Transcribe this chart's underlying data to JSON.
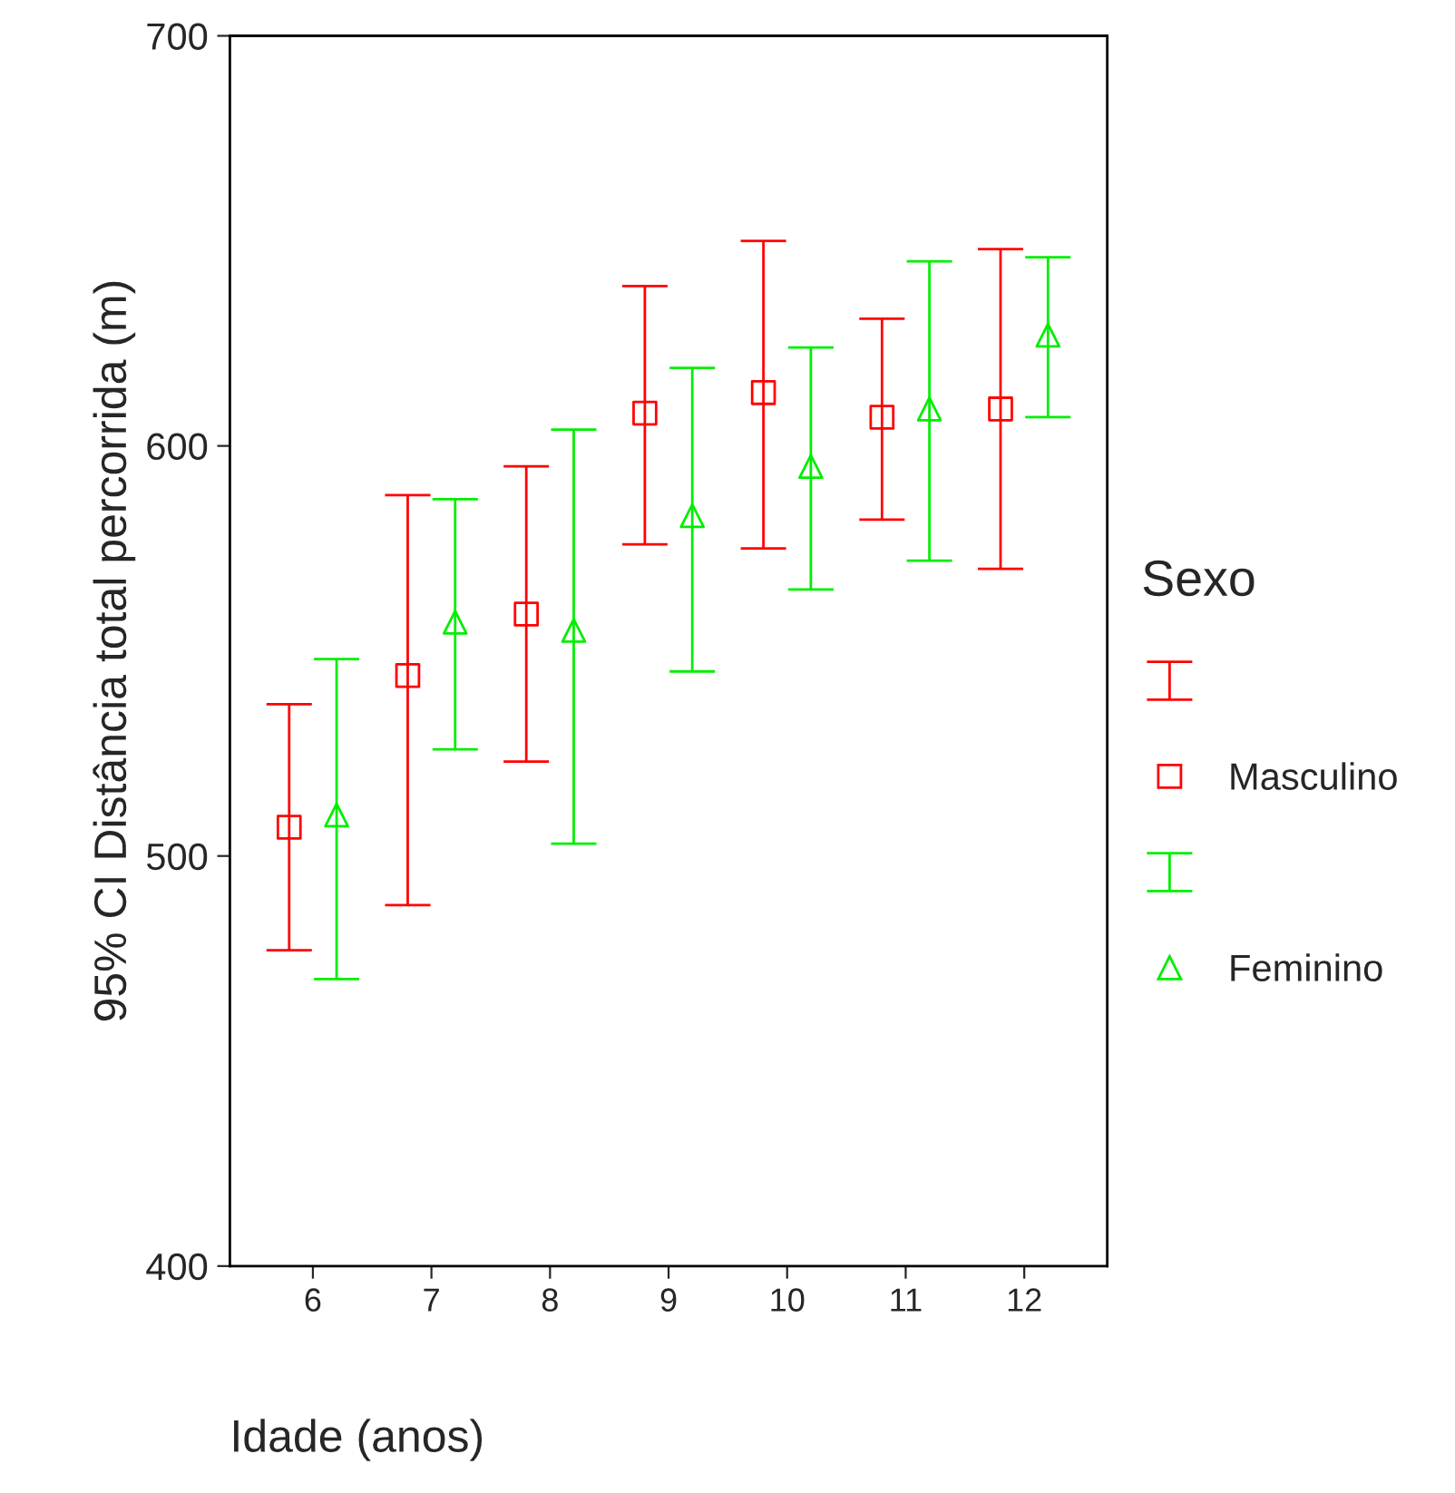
{
  "chart_data": {
    "type": "scatter",
    "xlabel": "Idade (anos)",
    "ylabel": "95% CI Distância total percorrida (m)",
    "legend_title": "Sexo",
    "legend": "right",
    "grid": false,
    "categories": [
      "6",
      "7",
      "8",
      "9",
      "10",
      "11",
      "12"
    ],
    "ylim": [
      400,
      700
    ],
    "yticks": [
      400,
      500,
      600,
      700
    ],
    "series": [
      {
        "name": "Masculino",
        "color": "#ff0000",
        "marker": "square",
        "values": [
          507,
          544,
          559,
          608,
          613,
          607,
          609
        ],
        "errors": [
          [
            477,
            537
          ],
          [
            488,
            588
          ],
          [
            523,
            595
          ],
          [
            576,
            639
          ],
          [
            575,
            650
          ],
          [
            582,
            631
          ],
          [
            570,
            648
          ]
        ]
      },
      {
        "name": "Feminino",
        "color": "#00ee00",
        "marker": "triangle",
        "values": [
          510,
          557,
          555,
          583,
          595,
          609,
          627
        ],
        "errors": [
          [
            470,
            548
          ],
          [
            526,
            587
          ],
          [
            503,
            604
          ],
          [
            545,
            619
          ],
          [
            565,
            624
          ],
          [
            572,
            645
          ],
          [
            607,
            646
          ]
        ]
      }
    ]
  }
}
